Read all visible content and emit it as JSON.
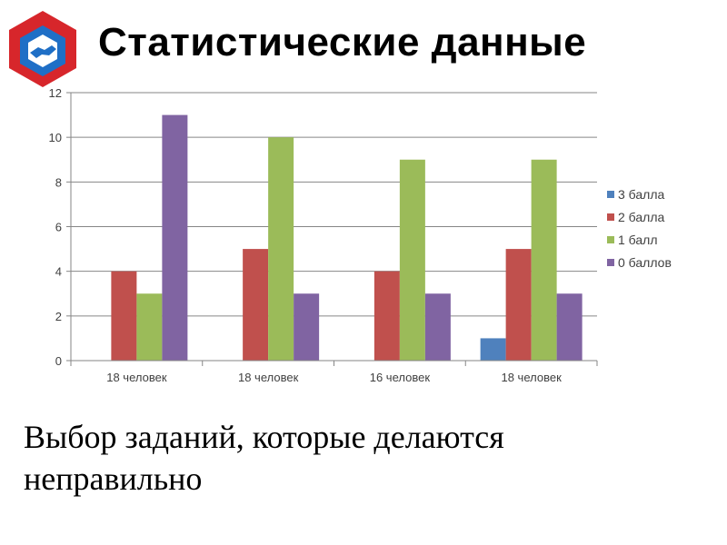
{
  "slide": {
    "title": "Статистические данные",
    "caption": "Выбор заданий, которые делаются неправильно"
  },
  "logo": {
    "icon": "hexagon-handshake-logo",
    "colors": [
      "#d7262b",
      "#1f6fc6",
      "#ffffff"
    ]
  },
  "chart_data": {
    "type": "bar",
    "categories": [
      "18 человек",
      "18 человек",
      "16 человек",
      "18 человек"
    ],
    "series": [
      {
        "name": "3 балла",
        "color": "#4f81bd",
        "values": [
          0,
          0,
          0,
          1
        ]
      },
      {
        "name": "2 балла",
        "color": "#c0504d",
        "values": [
          4,
          5,
          4,
          5
        ]
      },
      {
        "name": "1 балл",
        "color": "#9bbb59",
        "values": [
          3,
          10,
          9,
          9
        ]
      },
      {
        "name": "0 баллов",
        "color": "#8064a2",
        "values": [
          11,
          3,
          3,
          3
        ]
      }
    ],
    "ylim": [
      0,
      12
    ],
    "yticks": [
      0,
      2,
      4,
      6,
      8,
      10,
      12
    ],
    "grid": true,
    "legend": "right"
  }
}
